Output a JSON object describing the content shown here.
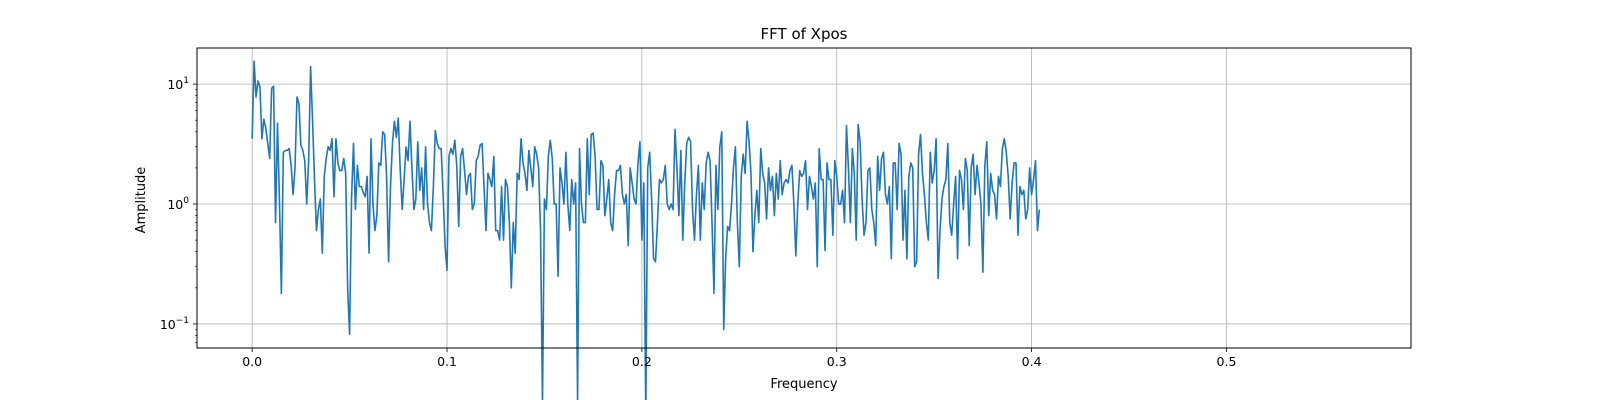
{
  "chart_data": {
    "type": "line",
    "title": "FFT of Xpos",
    "xlabel": "Frequency",
    "ylabel": "Amplitude",
    "xlim": [
      -0.0283,
      0.5947
    ],
    "ylim": [
      0.063,
      20.0
    ],
    "yscale": "log",
    "grid": true,
    "series_color": "#1f77b4",
    "x_ticks": [
      {
        "value": 0.0,
        "label": "0.0"
      },
      {
        "value": 0.1,
        "label": "0.1"
      },
      {
        "value": 0.2,
        "label": "0.2"
      },
      {
        "value": 0.3,
        "label": "0.3"
      },
      {
        "value": 0.4,
        "label": "0.4"
      },
      {
        "value": 0.5,
        "label": "0.5"
      }
    ],
    "y_ticks": [
      {
        "value": 0.1,
        "base": "10",
        "exp": "−1"
      },
      {
        "value": 1,
        "base": "10",
        "exp": "0"
      },
      {
        "value": 10,
        "base": "10",
        "exp": "1"
      }
    ],
    "x_start": 0.0,
    "x_step": 0.001,
    "series": [
      {
        "values": [
          3.5,
          15.5,
          7.8,
          10.6,
          9.5,
          3.5,
          5.1,
          4.3,
          3.2,
          2.4,
          9.2,
          9.6,
          0.7,
          4.7,
          1.1,
          0.18,
          2.7,
          2.8,
          2.8,
          2.9,
          2.1,
          1.2,
          2.0,
          7.8,
          6.9,
          3.1,
          2.8,
          2.3,
          1.0,
          2.3,
          14.0,
          5.0,
          1.6,
          0.6,
          0.9,
          1.1,
          0.39,
          1.7,
          2.4,
          3.0,
          2.8,
          3.5,
          1.15,
          3.5,
          2.2,
          1.9,
          1.9,
          2.4,
          1.8,
          0.2,
          0.082,
          1.1,
          3.2,
          0.9,
          2.1,
          1.4,
          1.4,
          1.25,
          1.15,
          1.7,
          0.39,
          3.5,
          1.0,
          0.6,
          0.8,
          2.2,
          2.1,
          4.0,
          3.8,
          1.7,
          0.33,
          1.4,
          3.2,
          4.9,
          3.6,
          5.2,
          1.9,
          0.9,
          1.6,
          3.0,
          2.3,
          4.9,
          2.0,
          0.9,
          1.1,
          3.3,
          1.3,
          2.0,
          0.9,
          3.0,
          1.0,
          0.7,
          0.6,
          1.4,
          4.1,
          3.2,
          2.9,
          2.9,
          1.2,
          0.45,
          0.28,
          2.5,
          2.9,
          2.6,
          3.4,
          2.1,
          0.65,
          2.5,
          2.9,
          1.9,
          1.2,
          1.7,
          1.8,
          0.9,
          1.0,
          2.3,
          2.5,
          3.1,
          3.2,
          1.4,
          0.6,
          1.8,
          1.6,
          1.4,
          2.5,
          0.6,
          0.6,
          0.5,
          1.4,
          0.5,
          1.6,
          1.4,
          0.7,
          0.2,
          0.7,
          0.39,
          1.8,
          1.6,
          3.5,
          2.2,
          1.8,
          1.3,
          2.8,
          2.0,
          1.4,
          3.0,
          2.6,
          2.0,
          0.6,
          0.022,
          1.1,
          0.9,
          2.5,
          3.4,
          2.4,
          1.0,
          1.0,
          0.25,
          2.0,
          1.5,
          1.0,
          2.7,
          1.0,
          0.6,
          1.6,
          1.0,
          1.5,
          0.023,
          2.9,
          1.0,
          0.7,
          0.7,
          3.5,
          1.2,
          3.8,
          3.9,
          2.5,
          0.9,
          0.9,
          2.3,
          2.1,
          0.8,
          1.1,
          1.6,
          0.7,
          0.6,
          1.2,
          1.9,
          1.9,
          2.1,
          1.2,
          1.0,
          1.2,
          0.45,
          2.0,
          1.5,
          1.1,
          1.0,
          2.2,
          3.3,
          0.5,
          1.5,
          0.017,
          2.0,
          2.7,
          1.1,
          0.35,
          0.33,
          0.7,
          1.6,
          1.5,
          1.6,
          2.1,
          1.0,
          0.9,
          1.0,
          0.9,
          4.2,
          2.0,
          0.8,
          2.8,
          0.5,
          1.5,
          3.2,
          3.6,
          3.3,
          0.9,
          0.5,
          1.2,
          2.1,
          0.5,
          1.5,
          0.9,
          2.2,
          2.7,
          2.3,
          0.7,
          0.18,
          2.1,
          0.9,
          3.0,
          4.0,
          0.09,
          0.35,
          0.65,
          0.6,
          1.0,
          2.0,
          3.0,
          0.7,
          0.3,
          1.7,
          2.6,
          1.8,
          4.9,
          3.3,
          1.8,
          0.4,
          0.8,
          1.3,
          0.7,
          2.9,
          1.8,
          1.5,
          0.75,
          2.0,
          1.3,
          1.7,
          0.8,
          1.8,
          1.1,
          2.3,
          1.2,
          1.5,
          1.6,
          1.5,
          1.9,
          2.1,
          1.0,
          0.37,
          1.0,
          1.9,
          1.7,
          1.8,
          2.3,
          0.9,
          1.7,
          1.4,
          1.1,
          1.5,
          0.3,
          2.9,
          1.6,
          1.6,
          0.41,
          2.2,
          1.6,
          1.6,
          0.55,
          2.3,
          1.7,
          1.0,
          1.0,
          1.3,
          0.7,
          4.5,
          2.0,
          0.7,
          2.9,
          1.8,
          0.5,
          4.6,
          3.3,
          1.1,
          0.55,
          0.7,
          1.9,
          2.0,
          0.9,
          0.7,
          0.45,
          2.5,
          1.3,
          2.4,
          2.7,
          1.2,
          1.0,
          1.4,
          0.35,
          2.2,
          2.2,
          0.9,
          3.2,
          2.6,
          0.5,
          1.3,
          0.35,
          1.7,
          2.2,
          2.0,
          0.3,
          0.33,
          2.6,
          3.8,
          1.8,
          1.2,
          0.7,
          0.5,
          2.7,
          1.5,
          1.9,
          3.5,
          0.24,
          0.6,
          1.1,
          1.4,
          1.6,
          3.2,
          0.7,
          0.55,
          1.0,
          1.7,
          0.35,
          1.9,
          1.6,
          0.9,
          2.4,
          1.9,
          0.45,
          2.0,
          2.6,
          1.2,
          2.1,
          1.5,
          1.0,
          0.27,
          2.1,
          3.3,
          0.8,
          1.8,
          1.3,
          1.2,
          0.75,
          1.7,
          1.4,
          2.9,
          3.5,
          2.7,
          1.7,
          0.75,
          1.5,
          2.2,
          2.2,
          0.55,
          1.4,
          1.2,
          1.3,
          0.75,
          0.9,
          2.0,
          1.2,
          1.6,
          2.3,
          0.6,
          0.9
        ]
      }
    ]
  }
}
